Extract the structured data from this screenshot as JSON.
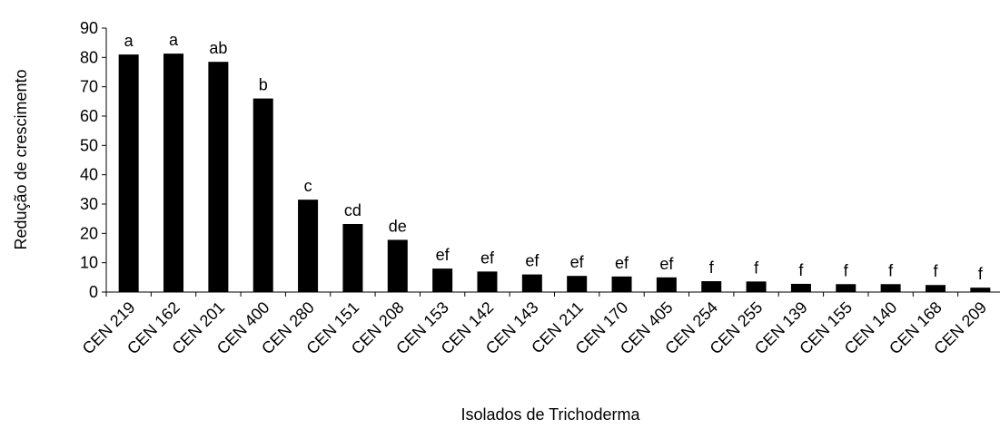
{
  "chart_data": {
    "type": "bar",
    "title": "",
    "xlabel": "Isolados de Trichoderma",
    "ylabel": "Redução de crescimento",
    "ylim": [
      0,
      90
    ],
    "yticks": [
      0,
      10,
      20,
      30,
      40,
      50,
      60,
      70,
      80,
      90
    ],
    "grid": false,
    "bar_color": "#000000",
    "categories": [
      "CEN 219",
      "CEN 162",
      "CEN 201",
      "CEN 400",
      "CEN 280",
      "CEN 151",
      "CEN 208",
      "CEN 153",
      "CEN 142",
      "CEN 143",
      "CEN 211",
      "CEN 170",
      "CEN 405",
      "CEN 254",
      "CEN 255",
      "CEN 139",
      "CEN 155",
      "CEN 140",
      "CEN 168",
      "CEN 209"
    ],
    "values": [
      81,
      81.3,
      78.5,
      66,
      31.5,
      23.2,
      17.8,
      8,
      7,
      6,
      5.5,
      5.3,
      5,
      3.7,
      3.6,
      2.8,
      2.7,
      2.7,
      2.4,
      1.5
    ],
    "annotations": [
      "a",
      "a",
      "ab",
      "b",
      "c",
      "cd",
      "de",
      "ef",
      "ef",
      "ef",
      "ef",
      "ef",
      "ef",
      "f",
      "f",
      "f",
      "f",
      "f",
      "f",
      "f"
    ]
  }
}
